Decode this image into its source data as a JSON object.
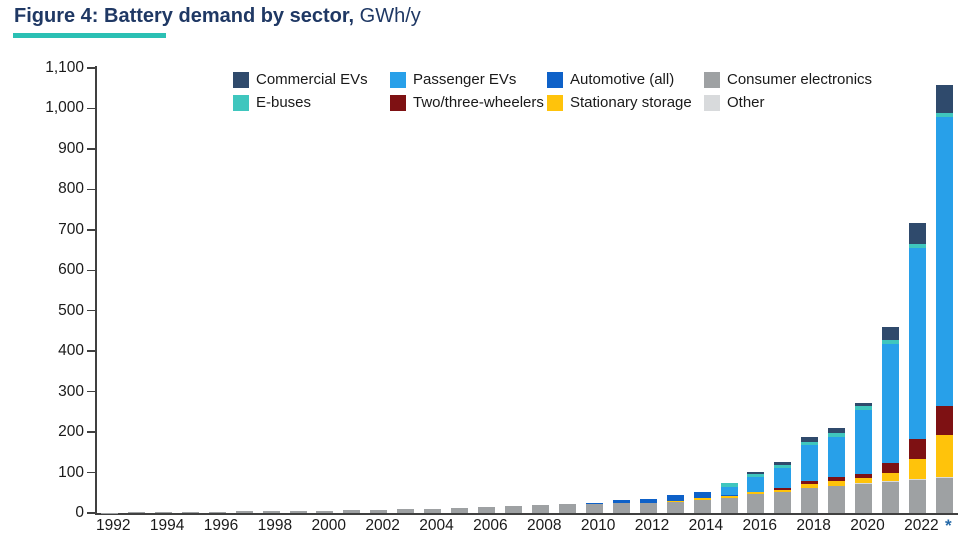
{
  "title": {
    "main": "Figure 4: Battery demand by sector,",
    "unit": "GWh/y"
  },
  "chart_data": {
    "type": "bar",
    "stacked": true,
    "title": "Figure 4: Battery demand by sector",
    "ylabel_unit": "GWh/y",
    "ylim": [
      0,
      1100
    ],
    "ytick_step": 100,
    "y_tick_labels": [
      "1,100",
      "1,000",
      "900",
      "800",
      "700",
      "600",
      "500",
      "400",
      "300",
      "200",
      "100",
      "0"
    ],
    "grid": false,
    "legend_position": "top-inside",
    "estimate_marker": "*",
    "estimate_marker_color": "#2569A8",
    "categories": [
      1992,
      1993,
      1994,
      1995,
      1996,
      1997,
      1998,
      1999,
      2000,
      2001,
      2002,
      2003,
      2004,
      2005,
      2006,
      2007,
      2008,
      2009,
      2010,
      2011,
      2012,
      2013,
      2014,
      2015,
      2016,
      2017,
      2018,
      2019,
      2020,
      2021,
      2022,
      2023
    ],
    "x_tick_labels": [
      "1992",
      "",
      "1994",
      "",
      "1996",
      "",
      "1998",
      "",
      "2000",
      "",
      "2002",
      "",
      "2004",
      "",
      "2006",
      "",
      "2008",
      "",
      "2010",
      "",
      "2012",
      "",
      "2014",
      "",
      "2016",
      "",
      "2018",
      "",
      "2020",
      "",
      "2022",
      "*"
    ],
    "series": [
      {
        "name": "Consumer electronics",
        "color": "#9EA1A3",
        "values": [
          1,
          2,
          2,
          3,
          3,
          4,
          4,
          5,
          6,
          7,
          8,
          10,
          11,
          13,
          14,
          17,
          20,
          23,
          23,
          24,
          25,
          27,
          31,
          38,
          46,
          51,
          62,
          67,
          72,
          77,
          82,
          87
        ]
      },
      {
        "name": "Other",
        "color": "#D8DADC",
        "values": [
          0,
          0,
          0,
          0,
          0,
          0,
          0,
          0,
          0,
          0,
          0,
          0,
          0,
          0,
          0,
          0,
          0,
          0,
          0,
          0,
          0,
          0,
          0,
          0,
          0,
          0,
          1,
          1,
          2,
          2,
          2,
          2
        ]
      },
      {
        "name": "Stationary storage",
        "color": "#FFC30B",
        "values": [
          0,
          0,
          0,
          0,
          0,
          0,
          0,
          0,
          0,
          0,
          0,
          0,
          0,
          0,
          0,
          0,
          0,
          0,
          0,
          0,
          1,
          3,
          5,
          4,
          5,
          7,
          10,
          10,
          12,
          20,
          50,
          105
        ]
      },
      {
        "name": "Two/three-wheelers",
        "color": "#7E1113",
        "values": [
          0,
          0,
          0,
          0,
          0,
          0,
          0,
          0,
          0,
          0,
          0,
          0,
          0,
          0,
          0,
          0,
          0,
          0,
          0,
          0,
          0,
          0,
          0,
          0,
          1,
          4,
          5,
          10,
          10,
          25,
          50,
          70
        ]
      },
      {
        "name": "Automotive (all)",
        "color": "#0E61C8",
        "values": [
          0,
          0,
          0,
          0,
          0,
          0,
          0,
          0,
          0,
          0,
          0,
          0,
          0,
          0,
          0,
          0,
          0,
          0,
          2,
          7,
          9,
          14,
          17,
          3,
          0,
          0,
          0,
          0,
          0,
          0,
          0,
          0
        ]
      },
      {
        "name": "Passenger EVs",
        "color": "#28A0E9",
        "values": [
          0,
          0,
          0,
          0,
          0,
          0,
          0,
          0,
          0,
          0,
          0,
          0,
          0,
          0,
          0,
          0,
          0,
          0,
          0,
          0,
          0,
          0,
          0,
          19,
          37,
          50,
          90,
          100,
          158,
          295,
          470,
          715
        ]
      },
      {
        "name": "E-buses",
        "color": "#3FC6BE",
        "values": [
          0,
          0,
          0,
          0,
          0,
          0,
          0,
          0,
          0,
          0,
          0,
          0,
          0,
          0,
          0,
          0,
          0,
          0,
          0,
          0,
          0,
          0,
          0,
          10,
          8,
          6,
          8,
          10,
          10,
          10,
          12,
          10
        ]
      },
      {
        "name": "Commercial EVs",
        "color": "#2F4A6C",
        "values": [
          0,
          0,
          0,
          0,
          0,
          0,
          0,
          0,
          0,
          0,
          0,
          0,
          0,
          0,
          0,
          0,
          0,
          0,
          0,
          0,
          0,
          0,
          0,
          0,
          4,
          8,
          12,
          12,
          8,
          30,
          50,
          70
        ]
      }
    ],
    "legend_order": [
      "Commercial EVs",
      "Passenger EVs",
      "Automotive (all)",
      "Consumer electronics",
      "E-buses",
      "Two/three-wheelers",
      "Stationary storage",
      "Other"
    ]
  }
}
